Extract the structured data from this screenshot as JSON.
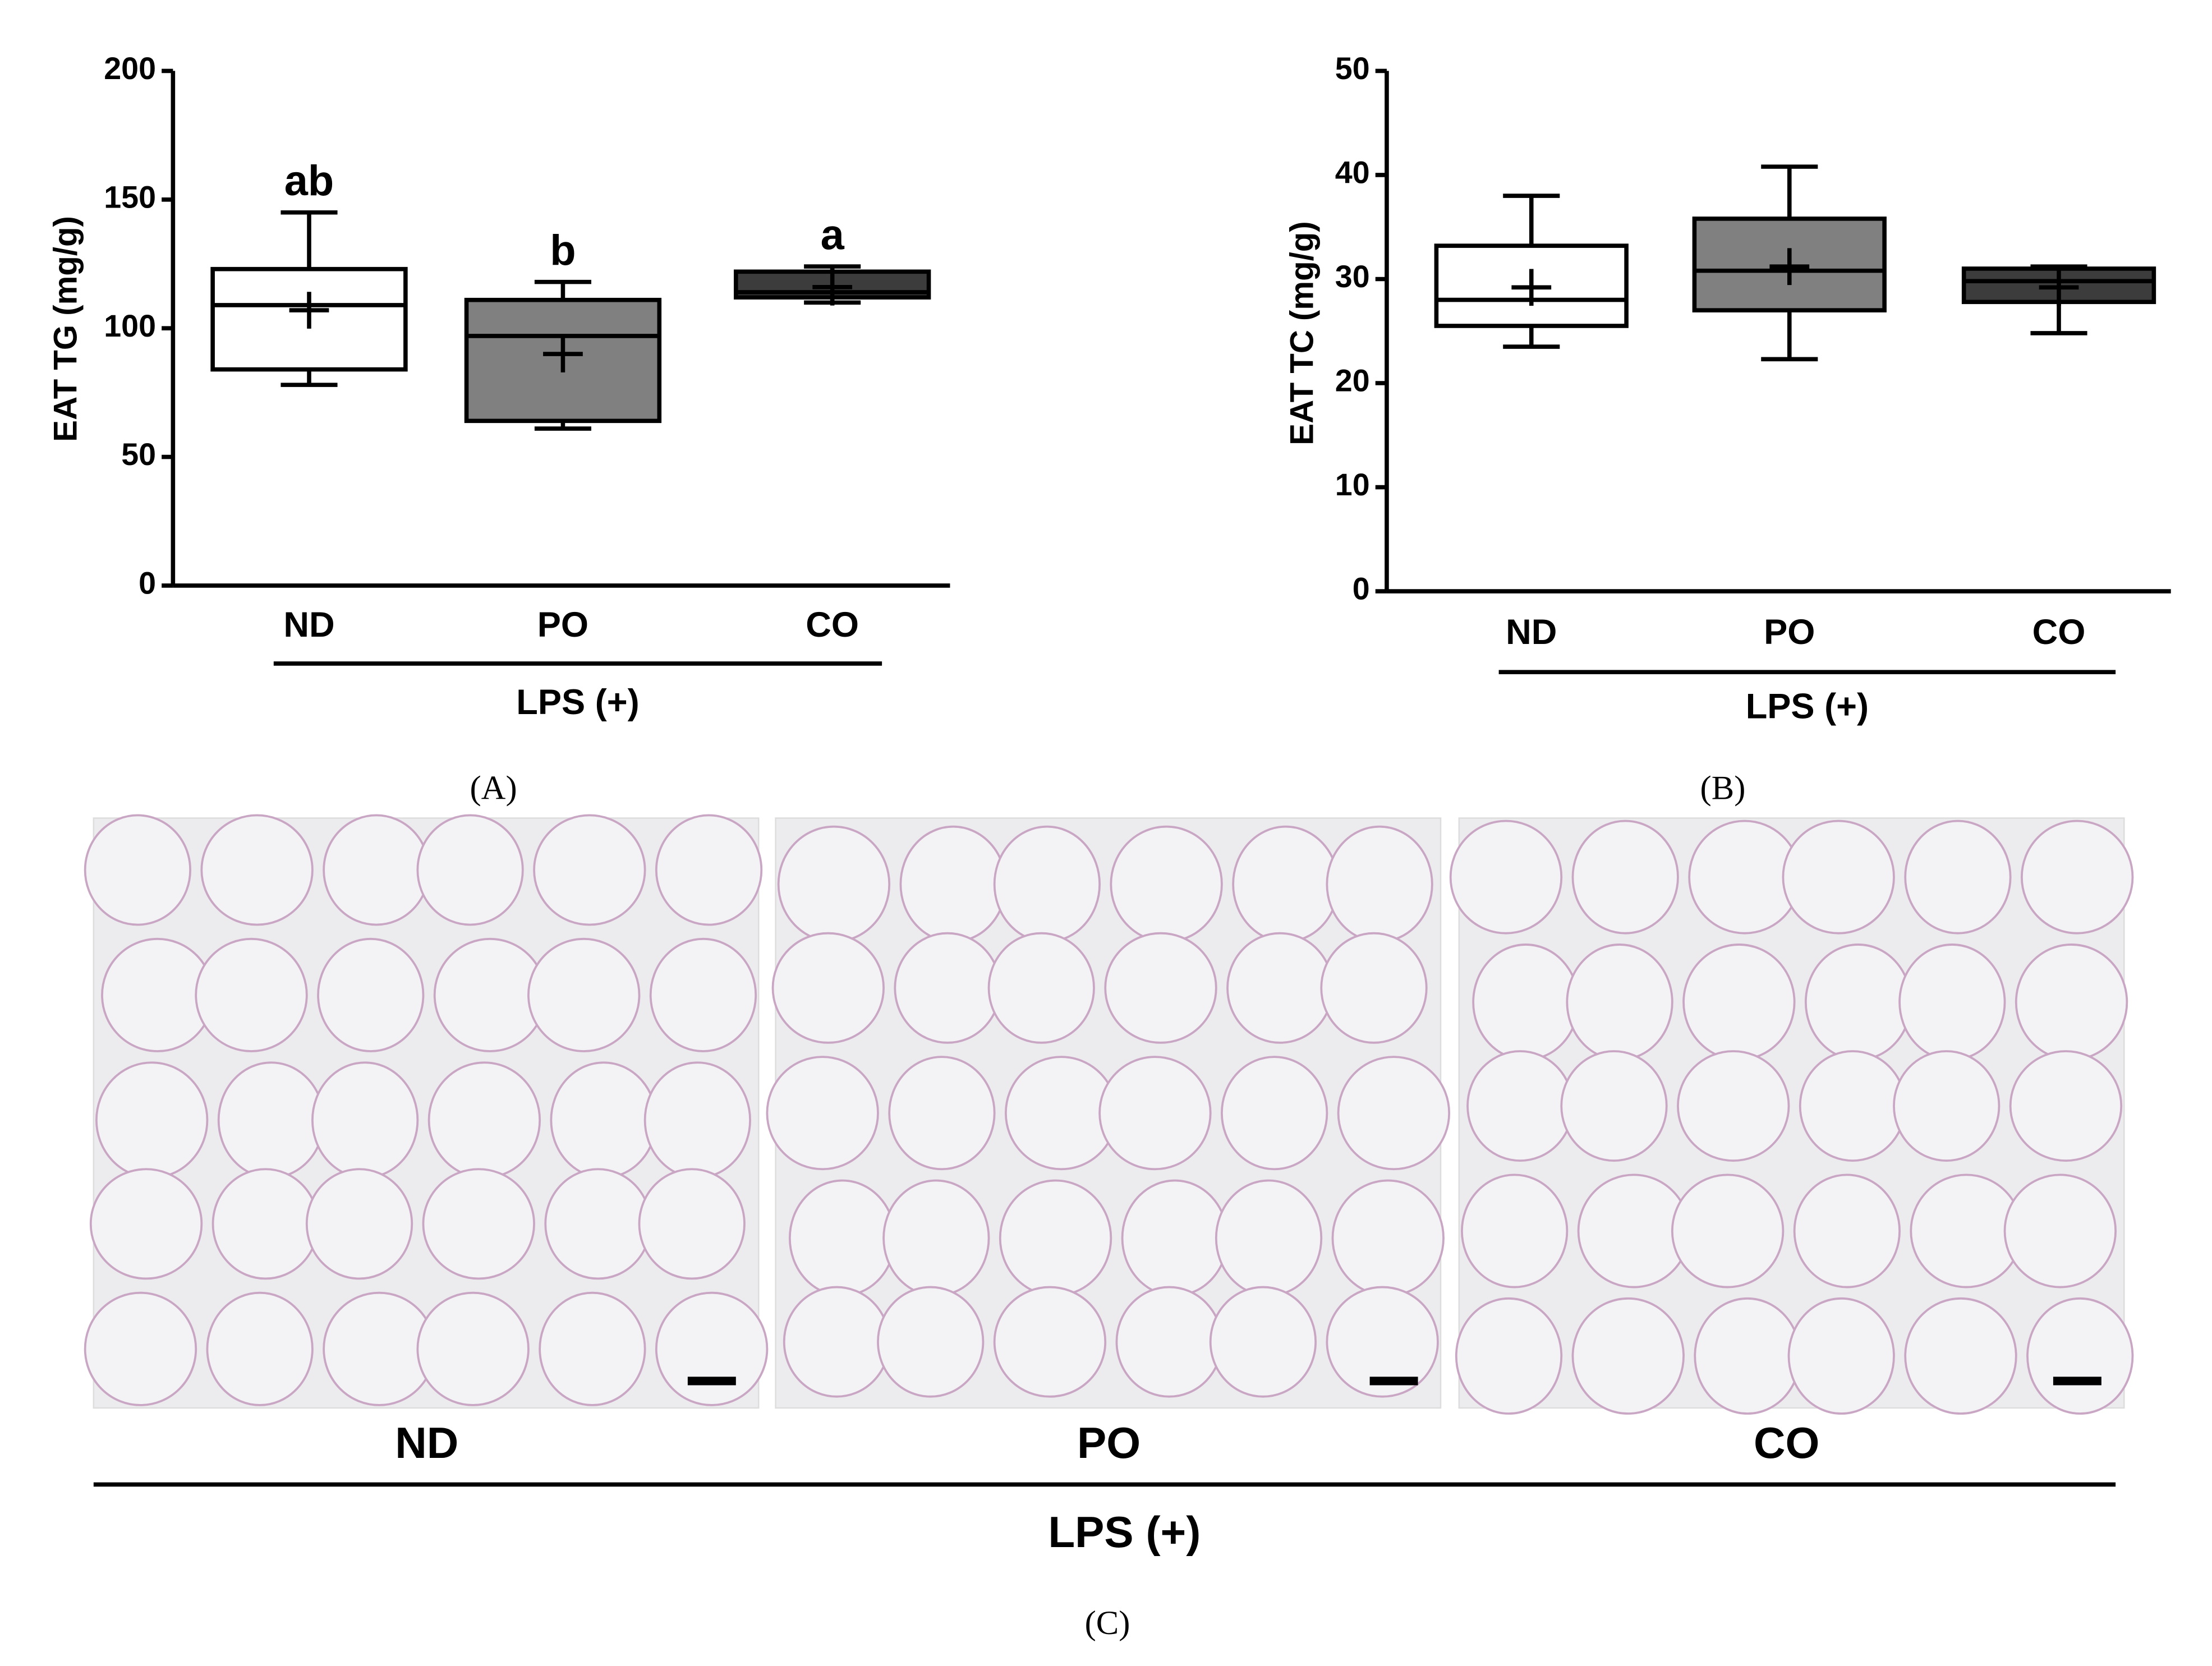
{
  "chart_data": [
    {
      "type": "box",
      "panel": "(A)",
      "ylabel": "EAT TG  (mg/g)",
      "group_label": "LPS (+)",
      "categories": [
        "ND",
        "PO",
        "CO"
      ],
      "ylim": [
        0,
        200
      ],
      "yticks": [
        0,
        50,
        100,
        150,
        200
      ],
      "boxes": [
        {
          "min": 78,
          "q1": 84,
          "median": 109,
          "q3": 123,
          "max": 145,
          "mean": 107,
          "color": "#ffffff",
          "annotation": "ab"
        },
        {
          "min": 61,
          "q1": 64,
          "median": 97,
          "q3": 111,
          "max": 118,
          "mean": 90,
          "color": "#808080",
          "annotation": "b"
        },
        {
          "min": 110,
          "q1": 112,
          "median": 114,
          "q3": 122,
          "max": 124,
          "mean": 116,
          "color": "#3c3c3c",
          "annotation": "a"
        }
      ]
    },
    {
      "type": "box",
      "panel": "(B)",
      "ylabel": "EAT TC (mg/g)",
      "group_label": "LPS (+)",
      "categories": [
        "ND",
        "PO",
        "CO"
      ],
      "ylim": [
        0,
        50
      ],
      "yticks": [
        0,
        10,
        20,
        30,
        40,
        50
      ],
      "boxes": [
        {
          "min": 23.5,
          "q1": 25.5,
          "median": 28,
          "q3": 33.2,
          "max": 38,
          "mean": 29.2,
          "color": "#ffffff"
        },
        {
          "min": 22.3,
          "q1": 27,
          "median": 30.8,
          "q3": 35.8,
          "max": 40.8,
          "mean": 31.2,
          "color": "#808080"
        },
        {
          "min": 24.8,
          "q1": 27.8,
          "median": 29.8,
          "q3": 31,
          "max": 31.2,
          "mean": 29.2,
          "color": "#3c3c3c"
        }
      ]
    }
  ],
  "panel_c": {
    "images": [
      "ND",
      "PO",
      "CO"
    ],
    "group_label": "LPS (+)",
    "panel": "(C)"
  }
}
